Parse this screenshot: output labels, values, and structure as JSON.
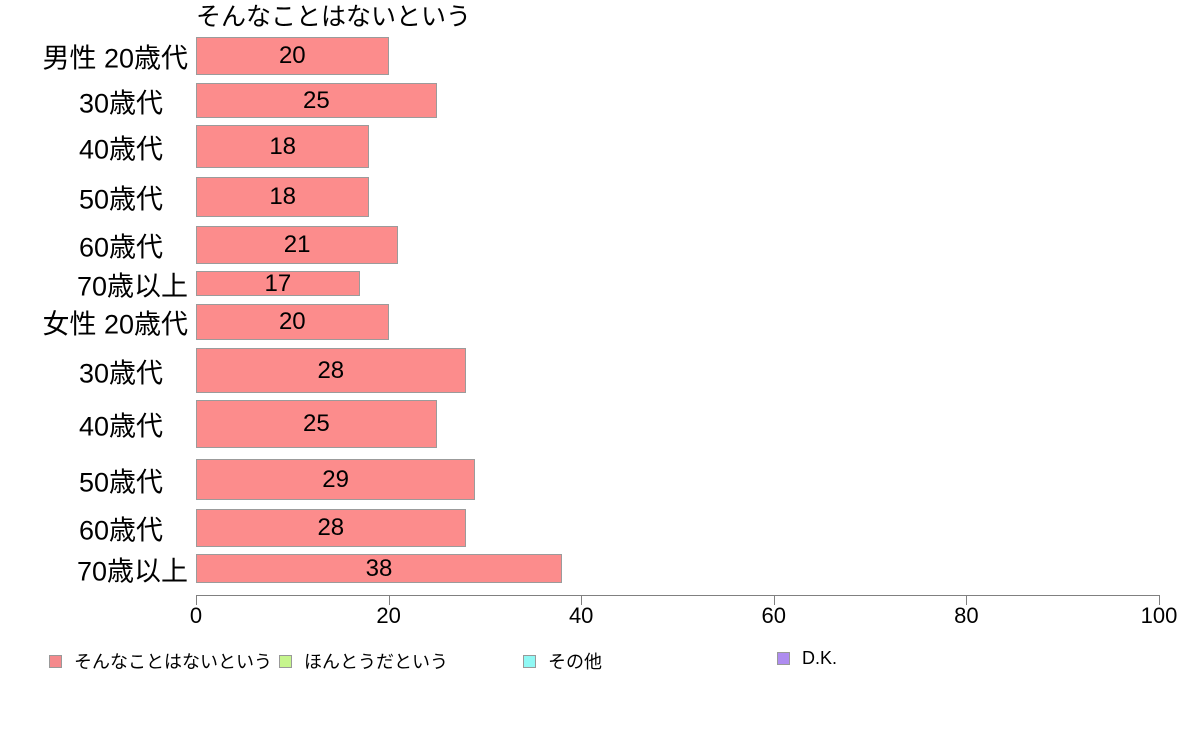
{
  "chart_data": {
    "type": "bar",
    "orientation": "horizontal",
    "title": "そんなことはないという",
    "categories": [
      "男性 20歳代",
      "30歳代",
      "40歳代",
      "50歳代",
      "60歳代",
      "70歳以上",
      "女性 20歳代",
      "30歳代",
      "40歳代",
      "50歳代",
      "60歳代",
      "70歳以上"
    ],
    "values": [
      20,
      25,
      18,
      18,
      21,
      17,
      20,
      28,
      25,
      29,
      28,
      38
    ],
    "xlabel": "",
    "ylabel": "",
    "xlim": [
      0,
      100
    ],
    "x_ticks": [
      0,
      20,
      40,
      60,
      80,
      100
    ],
    "grid": false,
    "bar_color": "#fc8c8c",
    "bar_border_color": "#9b9b9b",
    "legend_position": "bottom",
    "legend": [
      {
        "label": "そんなことはないという",
        "color": "#f4898c"
      },
      {
        "label": "ほんとうだという",
        "color": "#c6f58d"
      },
      {
        "label": "その他",
        "color": "#90f8f4"
      },
      {
        "label": "D.K.",
        "color": "#ae8cf0"
      }
    ]
  }
}
